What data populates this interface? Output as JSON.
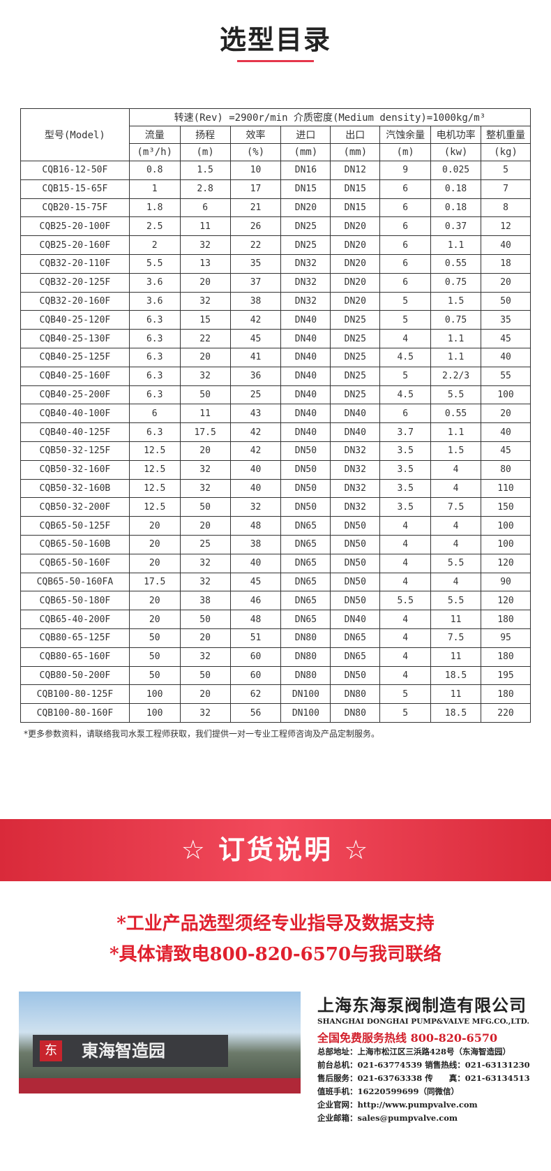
{
  "title": "选型目录",
  "table": {
    "model_header": "型号(Model)",
    "condition": "转速(Rev) =2900r/min  介质密度(Medium density)=1000kg/m³",
    "columns": [
      "流量",
      "扬程",
      "效率",
      "进口",
      "出口",
      "汽蚀余量",
      "电机功率",
      "整机重量"
    ],
    "units": [
      "(m³/h)",
      "(m)",
      "(%)",
      "(mm)",
      "(mm)",
      "(m)",
      "(kw)",
      "(kg)"
    ],
    "rows": [
      [
        "CQB16-12-50F",
        "0.8",
        "1.5",
        "10",
        "DN16",
        "DN12",
        "9",
        "0.025",
        "5"
      ],
      [
        "CQB15-15-65F",
        "1",
        "2.8",
        "17",
        "DN15",
        "DN15",
        "6",
        "0.18",
        "7"
      ],
      [
        "CQB20-15-75F",
        "1.8",
        "6",
        "21",
        "DN20",
        "DN15",
        "6",
        "0.18",
        "8"
      ],
      [
        "CQB25-20-100F",
        "2.5",
        "11",
        "26",
        "DN25",
        "DN20",
        "6",
        "0.37",
        "12"
      ],
      [
        "CQB25-20-160F",
        "2",
        "32",
        "22",
        "DN25",
        "DN20",
        "6",
        "1.1",
        "40"
      ],
      [
        "CQB32-20-110F",
        "5.5",
        "13",
        "35",
        "DN32",
        "DN20",
        "6",
        "0.55",
        "18"
      ],
      [
        "CQB32-20-125F",
        "3.6",
        "20",
        "37",
        "DN32",
        "DN20",
        "6",
        "0.75",
        "20"
      ],
      [
        "CQB32-20-160F",
        "3.6",
        "32",
        "38",
        "DN32",
        "DN20",
        "5",
        "1.5",
        "50"
      ],
      [
        "CQB40-25-120F",
        "6.3",
        "15",
        "42",
        "DN40",
        "DN25",
        "5",
        "0.75",
        "35"
      ],
      [
        "CQB40-25-130F",
        "6.3",
        "22",
        "45",
        "DN40",
        "DN25",
        "4",
        "1.1",
        "45"
      ],
      [
        "CQB40-25-125F",
        "6.3",
        "20",
        "41",
        "DN40",
        "DN25",
        "4.5",
        "1.1",
        "40"
      ],
      [
        "CQB40-25-160F",
        "6.3",
        "32",
        "36",
        "DN40",
        "DN25",
        "5",
        "2.2/3",
        "55"
      ],
      [
        "CQB40-25-200F",
        "6.3",
        "50",
        "25",
        "DN40",
        "DN25",
        "4.5",
        "5.5",
        "100"
      ],
      [
        "CQB40-40-100F",
        "6",
        "11",
        "43",
        "DN40",
        "DN40",
        "6",
        "0.55",
        "20"
      ],
      [
        "CQB40-40-125F",
        "6.3",
        "17.5",
        "42",
        "DN40",
        "DN40",
        "3.7",
        "1.1",
        "40"
      ],
      [
        "CQB50-32-125F",
        "12.5",
        "20",
        "42",
        "DN50",
        "DN32",
        "3.5",
        "1.5",
        "45"
      ],
      [
        "CQB50-32-160F",
        "12.5",
        "32",
        "40",
        "DN50",
        "DN32",
        "3.5",
        "4",
        "80"
      ],
      [
        "CQB50-32-160B",
        "12.5",
        "32",
        "40",
        "DN50",
        "DN32",
        "3.5",
        "4",
        "110"
      ],
      [
        "CQB50-32-200F",
        "12.5",
        "50",
        "32",
        "DN50",
        "DN32",
        "3.5",
        "7.5",
        "150"
      ],
      [
        "CQB65-50-125F",
        "20",
        "20",
        "48",
        "DN65",
        "DN50",
        "4",
        "4",
        "100"
      ],
      [
        "CQB65-50-160B",
        "20",
        "25",
        "38",
        "DN65",
        "DN50",
        "4",
        "4",
        "100"
      ],
      [
        "CQB65-50-160F",
        "20",
        "32",
        "40",
        "DN65",
        "DN50",
        "4",
        "5.5",
        "120"
      ],
      [
        "CQB65-50-160FA",
        "17.5",
        "32",
        "45",
        "DN65",
        "DN50",
        "4",
        "4",
        "90"
      ],
      [
        "CQB65-50-180F",
        "20",
        "38",
        "46",
        "DN65",
        "DN50",
        "5.5",
        "5.5",
        "120"
      ],
      [
        "CQB65-40-200F",
        "20",
        "50",
        "48",
        "DN65",
        "DN40",
        "4",
        "11",
        "180"
      ],
      [
        "CQB80-65-125F",
        "50",
        "20",
        "51",
        "DN80",
        "DN65",
        "4",
        "7.5",
        "95"
      ],
      [
        "CQB80-65-160F",
        "50",
        "32",
        "60",
        "DN80",
        "DN65",
        "4",
        "11",
        "180"
      ],
      [
        "CQB80-50-200F",
        "50",
        "50",
        "60",
        "DN80",
        "DN50",
        "4",
        "18.5",
        "195"
      ],
      [
        "CQB100-80-125F",
        "100",
        "20",
        "62",
        "DN100",
        "DN80",
        "5",
        "11",
        "180"
      ],
      [
        "CQB100-80-160F",
        "100",
        "32",
        "56",
        "DN100",
        "DN80",
        "5",
        "18.5",
        "220"
      ]
    ]
  },
  "note": "*更多参数资料，请联络我司水泵工程师获取，我们提供一对一专业工程师咨询及产品定制服务。",
  "banner": "☆ 订货说明 ☆",
  "red_lines": [
    "*工业产品选型须经专业指导及数据支持",
    "*具体请致电800-820-6570与我司联络"
  ],
  "photo": {
    "sign": "東海智造园",
    "logo": "东"
  },
  "company": {
    "name": "上海东海泵阀制造有限公司",
    "en": "SHANGHAI DONGHAI PUMP&VALVE MFG.CO.,LTD.",
    "hotline": "全国免费服务热线  800-820-6570",
    "lines": [
      "总部地址：上海市松江区三浜路428号（东海智造园）",
      "前台总机：021-63774539   销售热线：021-63131230",
      "售后服务：021-63763338   传　　真：021-63134513",
      "值班手机：16220599699（同微信）",
      "企业官网：http://www.pumpvalve.com",
      "企业邮箱：sales@pumpvalve.com"
    ]
  },
  "colors": {
    "accent": "#e5364b",
    "banner": "#e63546",
    "red_text": "#e0202e"
  }
}
